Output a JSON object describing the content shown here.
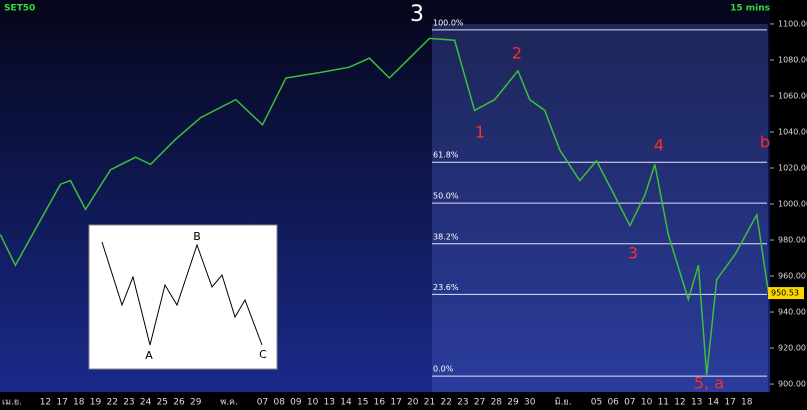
{
  "chart_data": {
    "type": "line",
    "symbol": "SET50",
    "interval": "15 mins",
    "wave_title": "3",
    "categories": [
      "เม.ย.",
      null,
      "12",
      "17",
      "18",
      "19",
      "22",
      "23",
      "24",
      "25",
      "26",
      "29",
      null,
      "พ.ค.",
      null,
      "07",
      "08",
      "09",
      "10",
      "13",
      "14",
      "15",
      "16",
      "17",
      "20",
      "21",
      "22",
      "23",
      "27",
      "28",
      "29",
      "30",
      null,
      "มิ.ย.",
      null,
      "05",
      "06",
      "07",
      "10",
      "11",
      "12",
      "13",
      "14",
      "17",
      "18"
    ],
    "xlim": [
      -0.72,
      45.39
    ],
    "ylim": [
      895.6,
      1113.3
    ],
    "yticks": [
      {
        "value": 900,
        "label": "900.00"
      },
      {
        "value": 920,
        "label": "920.00"
      },
      {
        "value": 940,
        "label": "940.00"
      },
      {
        "value": 960,
        "label": "960.00"
      },
      {
        "value": 980,
        "label": "980.00"
      },
      {
        "value": 1000,
        "label": "1000.00"
      },
      {
        "value": 1020,
        "label": "1020.00"
      },
      {
        "value": 1040,
        "label": "1040.00"
      },
      {
        "value": 1060,
        "label": "1060.00"
      },
      {
        "value": 1080,
        "label": "1080.00"
      },
      {
        "value": 1100,
        "label": "1100.00"
      }
    ],
    "series": [
      {
        "name": "SET50",
        "color": "#3cbf3c",
        "x": [
          -0.7,
          0.2,
          1.7,
          2.9,
          3.5,
          4.4,
          5.9,
          7.4,
          8.3,
          9.8,
          11.3,
          13.4,
          15,
          16.4,
          18.4,
          20.2,
          21.4,
          22.6,
          23.8,
          25,
          26.5,
          27.7,
          28.9,
          30.3,
          31,
          31.9,
          32.8,
          34,
          35,
          35.9,
          37,
          37.9,
          38.5,
          39.3,
          40.5,
          41.1,
          41.6,
          42.2,
          43.3,
          44.6,
          45.3
        ],
        "values": [
          983,
          966,
          991,
          1011,
          1013,
          997,
          1019,
          1026,
          1022,
          1036,
          1048,
          1058,
          1044,
          1070,
          1073,
          1076,
          1081,
          1070,
          1081,
          1092,
          1091,
          1052,
          1058,
          1074,
          1058,
          1052,
          1030,
          1013,
          1024,
          1008,
          988,
          1005,
          1022,
          983,
          947,
          966,
          905,
          958,
          972,
          994,
          950.53
        ]
      }
    ],
    "last_price": 950.53,
    "fib_levels": [
      {
        "value": 1096.7,
        "label": "100.0%"
      },
      {
        "value": 1023.2,
        "label": "61.8%"
      },
      {
        "value": 1000.5,
        "label": "50.0%"
      },
      {
        "value": 977.9,
        "label": "38.2%"
      },
      {
        "value": 949.8,
        "label": "23.6%"
      },
      {
        "value": 904.4,
        "label": "0.0%"
      }
    ],
    "wave_labels": [
      "1",
      "2",
      "3",
      "4",
      "5, a",
      "b"
    ],
    "inset_labels": [
      "A",
      "B",
      "C"
    ]
  }
}
